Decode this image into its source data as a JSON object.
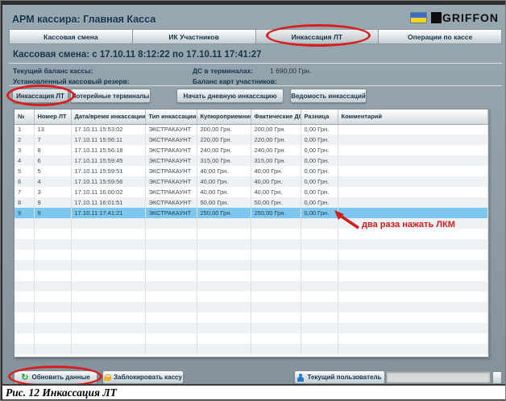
{
  "window": {
    "title": "АРМ кассира: Главная Касса"
  },
  "logo": {
    "text": "GRIFFON"
  },
  "tabs": [
    {
      "label": "Кассовая смена"
    },
    {
      "label": "ИК Участников"
    },
    {
      "label": "Инкассация ЛТ"
    },
    {
      "label": "Операции по кассе"
    }
  ],
  "shift": {
    "header": "Кассовая смена: с 17.10.11 8:12:22 по 17.10.11 17:41:27"
  },
  "info": {
    "cash_balance_label": "Текущий баланс кассы:",
    "cash_reserve_label": "Установленный кассовый резерв:",
    "terminals_label": "ДС в терминалах:",
    "terminals_value": "1 690,00 Грн.",
    "cards_balance_label": "Баланс карт участников:"
  },
  "toolbar": {
    "collection_lt": "Инкассация ЛТ",
    "lottery_terminals": "Лотерейные терминалы",
    "start_daily": "Начать дневную инкассацию",
    "statement": "Ведомость инкассаций"
  },
  "table": {
    "columns": [
      "№",
      "Номер ЛТ",
      "Дата/время инкассации",
      "Тип инкассации",
      "Купюроприемник",
      "Фактические ДС",
      "Разница",
      "Комментарий"
    ],
    "rows": [
      [
        "1",
        "13",
        "17.10.11 15:53:02",
        "ЭКСТРАКАУНТ",
        "200,00 Грн.",
        "200,00 Грн.",
        "0,00 Грн.",
        ""
      ],
      [
        "2",
        "7",
        "17.10.11 15:56:11",
        "ЭКСТРАКАУНТ",
        "220,00 Грн.",
        "220,00 Грн.",
        "0,00 Грн.",
        ""
      ],
      [
        "3",
        "8",
        "17.10.11 15:56:18",
        "ЭКСТРАКАУНТ",
        "240,00 Грн.",
        "240,00 Грн.",
        "0,00 Грн.",
        ""
      ],
      [
        "4",
        "6",
        "17.10.11 15:59:45",
        "ЭКСТРАКАУНТ",
        "315,00 Грн.",
        "315,00 Грн.",
        "0,00 Грн.",
        ""
      ],
      [
        "5",
        "5",
        "17.10.11 15:59:51",
        "ЭКСТРАКАУНТ",
        "40,00 Грн.",
        "40,00 Грн.",
        "0,00 Грн.",
        ""
      ],
      [
        "6",
        "4",
        "17.10.11 15:59:56",
        "ЭКСТРАКАУНТ",
        "40,00 Грн.",
        "40,00 Грн.",
        "0,00 Грн.",
        ""
      ],
      [
        "7",
        "3",
        "17.10.11 16:00:02",
        "ЭКСТРАКАУНТ",
        "40,00 Грн.",
        "40,00 Грн.",
        "0,00 Грн.",
        ""
      ],
      [
        "8",
        "9",
        "17.10.11 16:01:51",
        "ЭКСТРАКАУНТ",
        "50,00 Грн.",
        "50,00 Грн.",
        "0,00 Грн.",
        ""
      ],
      [
        "9",
        "9",
        "17.10.11 17:41:21",
        "ЭКСТРАКАУНТ",
        "250,00 Грн.",
        "250,00 Грн.",
        "0,00 Грн.",
        ""
      ]
    ],
    "selected_row_index": 8,
    "empty_row_count": 13
  },
  "annotation": {
    "text": "два раза нажать ЛКМ"
  },
  "bottom": {
    "refresh_label": "Обновить данные",
    "lock_label": "Заблокировать кассу",
    "current_user_label": "Текущий пользователь",
    "user_value": ""
  },
  "caption": "Рис. 12 Инкассация ЛТ",
  "colors": {
    "background": "#8b9ca7",
    "heading_text": "#16344a",
    "selected_row": "#7cc7f0",
    "markup_red": "#d62020",
    "flag_blue": "#3a6cc8",
    "flag_yellow": "#f2d321"
  }
}
